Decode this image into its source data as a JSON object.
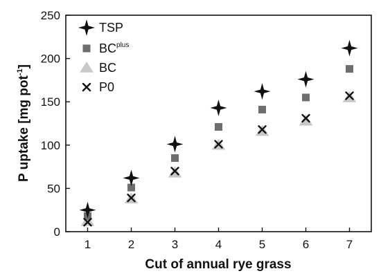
{
  "chart_data": {
    "type": "scatter",
    "xlabel": "Cut of annual rye grass",
    "ylabel": "P uptake [mg pot",
    "ylabel_sup": "-1",
    "ylabel_close": "]",
    "x": [
      1,
      2,
      3,
      4,
      5,
      6,
      7
    ],
    "x_ticks": [
      "1",
      "2",
      "3",
      "4",
      "5",
      "6",
      "7"
    ],
    "xlim": [
      0.5,
      7.5
    ],
    "ylim": [
      0,
      250
    ],
    "y_ticks": [
      "0",
      "50",
      "100",
      "150",
      "200",
      "250"
    ],
    "grid": false,
    "legend_position": "top-left",
    "series": [
      {
        "name": "TSP",
        "marker": "four-point-star",
        "color": "#111111",
        "values": [
          25,
          62,
          101,
          143,
          162,
          176,
          212
        ]
      },
      {
        "name": "BC",
        "name_sup": "plus",
        "marker": "square",
        "color": "#6e6e6e",
        "values": [
          18,
          51,
          85,
          121,
          141,
          155,
          188
        ]
      },
      {
        "name": "BC",
        "marker": "triangle",
        "color": "#c8c8c8",
        "values": [
          12,
          38,
          68,
          100,
          116,
          128,
          155
        ]
      },
      {
        "name": "P0",
        "marker": "x",
        "color": "#111111",
        "values": [
          11,
          39,
          70,
          101,
          118,
          131,
          157
        ]
      }
    ]
  }
}
